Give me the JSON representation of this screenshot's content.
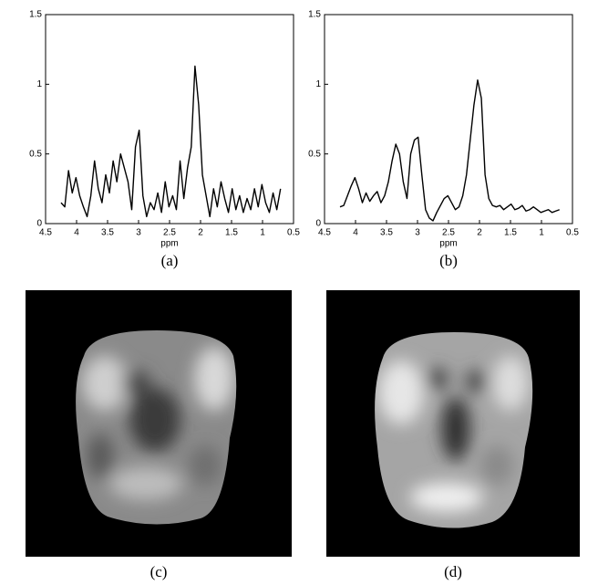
{
  "chart_data": [
    {
      "type": "line",
      "caption": "(a)",
      "xlabel": "ppm",
      "xlim": [
        4.5,
        0.5
      ],
      "xticks": [
        4.5,
        4,
        3.5,
        3,
        2.5,
        2,
        1.5,
        1,
        0.5
      ],
      "ylim": [
        0,
        1.5
      ],
      "yticks": [
        0,
        0.5,
        1,
        1.5
      ],
      "color": "#000000",
      "x": [
        4.25,
        4.19,
        4.13,
        4.07,
        4.01,
        3.95,
        3.89,
        3.83,
        3.77,
        3.71,
        3.65,
        3.59,
        3.53,
        3.47,
        3.41,
        3.35,
        3.29,
        3.23,
        3.17,
        3.11,
        3.05,
        2.99,
        2.93,
        2.87,
        2.81,
        2.75,
        2.69,
        2.63,
        2.57,
        2.51,
        2.45,
        2.39,
        2.33,
        2.27,
        2.21,
        2.15,
        2.09,
        2.03,
        1.97,
        1.91,
        1.85,
        1.79,
        1.73,
        1.67,
        1.61,
        1.55,
        1.49,
        1.43,
        1.37,
        1.31,
        1.25,
        1.19,
        1.13,
        1.07,
        1.01,
        0.95,
        0.89,
        0.83,
        0.77,
        0.71
      ],
      "values": [
        0.15,
        0.12,
        0.38,
        0.22,
        0.33,
        0.2,
        0.12,
        0.05,
        0.2,
        0.45,
        0.25,
        0.15,
        0.35,
        0.22,
        0.45,
        0.3,
        0.5,
        0.4,
        0.3,
        0.1,
        0.55,
        0.67,
        0.2,
        0.05,
        0.15,
        0.1,
        0.22,
        0.08,
        0.3,
        0.12,
        0.2,
        0.1,
        0.45,
        0.18,
        0.4,
        0.55,
        1.13,
        0.85,
        0.35,
        0.2,
        0.05,
        0.25,
        0.12,
        0.3,
        0.18,
        0.08,
        0.25,
        0.1,
        0.2,
        0.08,
        0.18,
        0.1,
        0.25,
        0.12,
        0.28,
        0.15,
        0.08,
        0.22,
        0.1,
        0.25
      ]
    },
    {
      "type": "line",
      "caption": "(b)",
      "xlabel": "ppm",
      "xlim": [
        4.5,
        0.5
      ],
      "xticks": [
        4.5,
        4,
        3.5,
        3,
        2.5,
        2,
        1.5,
        1,
        0.5
      ],
      "ylim": [
        0,
        1.5
      ],
      "yticks": [
        0,
        0.5,
        1,
        1.5
      ],
      "color": "#000000",
      "x": [
        4.25,
        4.19,
        4.13,
        4.07,
        4.01,
        3.95,
        3.89,
        3.83,
        3.77,
        3.71,
        3.65,
        3.59,
        3.53,
        3.47,
        3.41,
        3.35,
        3.29,
        3.23,
        3.17,
        3.11,
        3.05,
        2.99,
        2.93,
        2.87,
        2.81,
        2.75,
        2.69,
        2.63,
        2.57,
        2.51,
        2.45,
        2.39,
        2.33,
        2.27,
        2.21,
        2.15,
        2.09,
        2.03,
        1.97,
        1.91,
        1.85,
        1.79,
        1.73,
        1.67,
        1.61,
        1.55,
        1.49,
        1.43,
        1.37,
        1.31,
        1.25,
        1.19,
        1.13,
        1.07,
        1.01,
        0.95,
        0.89,
        0.83,
        0.77,
        0.71
      ],
      "values": [
        0.12,
        0.13,
        0.2,
        0.27,
        0.33,
        0.25,
        0.15,
        0.22,
        0.16,
        0.2,
        0.23,
        0.15,
        0.2,
        0.3,
        0.45,
        0.57,
        0.5,
        0.3,
        0.18,
        0.5,
        0.6,
        0.62,
        0.35,
        0.1,
        0.04,
        0.02,
        0.08,
        0.13,
        0.18,
        0.2,
        0.15,
        0.1,
        0.12,
        0.2,
        0.35,
        0.6,
        0.85,
        1.03,
        0.9,
        0.35,
        0.18,
        0.13,
        0.12,
        0.13,
        0.1,
        0.12,
        0.14,
        0.1,
        0.11,
        0.13,
        0.09,
        0.1,
        0.12,
        0.1,
        0.08,
        0.09,
        0.1,
        0.08,
        0.09,
        0.1
      ]
    }
  ],
  "images": [
    {
      "caption": "(c)"
    },
    {
      "caption": "(d)"
    }
  ]
}
